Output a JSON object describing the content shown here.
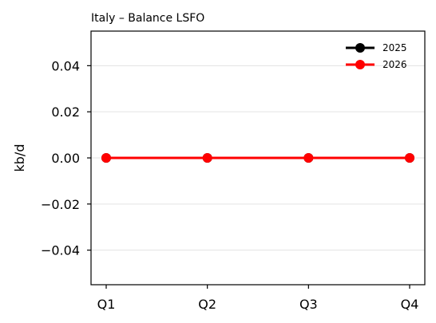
{
  "chart_data": {
    "type": "line",
    "title": "Italy – Balance LSFO",
    "xlabel": "",
    "ylabel": "kb/d",
    "categories": [
      "Q1",
      "Q2",
      "Q3",
      "Q4"
    ],
    "ylim": [
      -0.055,
      0.055
    ],
    "yticks": [
      0.04,
      0.02,
      0.0,
      -0.02,
      -0.04
    ],
    "ytick_labels": [
      "0.04",
      "0.02",
      "0.00",
      "−0.02",
      "−0.04"
    ],
    "grid": true,
    "legend_position": "top-right",
    "series": [
      {
        "name": "2025",
        "color": "#000000",
        "values": [
          0,
          0,
          0,
          0
        ]
      },
      {
        "name": "2026",
        "color": "#ff0000",
        "values": [
          0,
          0,
          0,
          0
        ]
      }
    ]
  }
}
